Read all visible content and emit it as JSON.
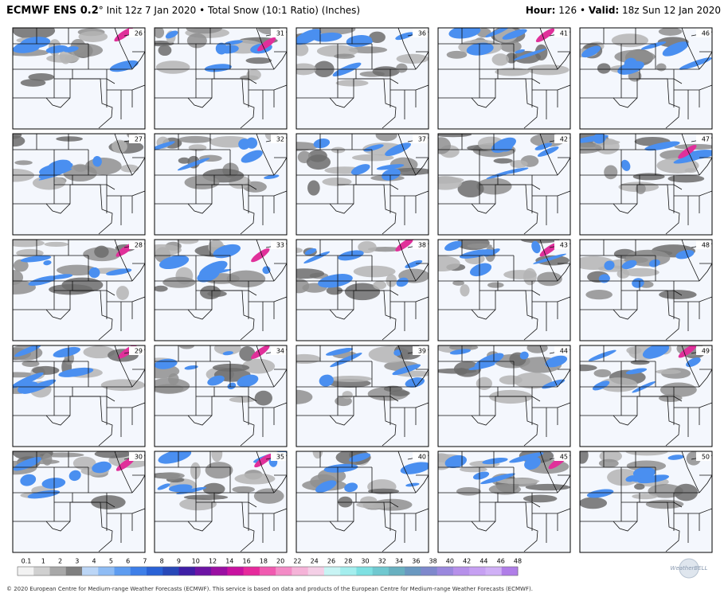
{
  "header": {
    "model": "ECMWF ENS 0.2",
    "description": "° Init 12z 7 Jan 2020 • Total Snow (10:1 Ratio) (Inches)",
    "hour_label": "Hour:",
    "hour": "126",
    "separator": "•",
    "valid_label": "Valid:",
    "valid": "18z Sun 12 Jan 2020"
  },
  "panels": [
    "26",
    "31",
    "36",
    "41",
    "46",
    "27",
    "32",
    "37",
    "42",
    "47",
    "28",
    "33",
    "38",
    "43",
    "48",
    "29",
    "34",
    "39",
    "44",
    "49",
    "30",
    "35",
    "40",
    "45",
    "50"
  ],
  "colorbar": {
    "labels": [
      "0.1",
      "1",
      "2",
      "3",
      "4",
      "5",
      "6",
      "7",
      "8",
      "9",
      "10",
      "12",
      "14",
      "16",
      "18",
      "20",
      "22",
      "24",
      "26",
      "28",
      "30",
      "32",
      "34",
      "36",
      "38",
      "40",
      "42",
      "44",
      "46",
      "48"
    ]
  },
  "logo": "WeatherBELL",
  "footer": "© 2020 European Centre for Medium-range Weather Forecasts (ECMWF). This service is based on data and products of the European Centre for Medium-range Weather Forecasts (ECMWF)."
}
